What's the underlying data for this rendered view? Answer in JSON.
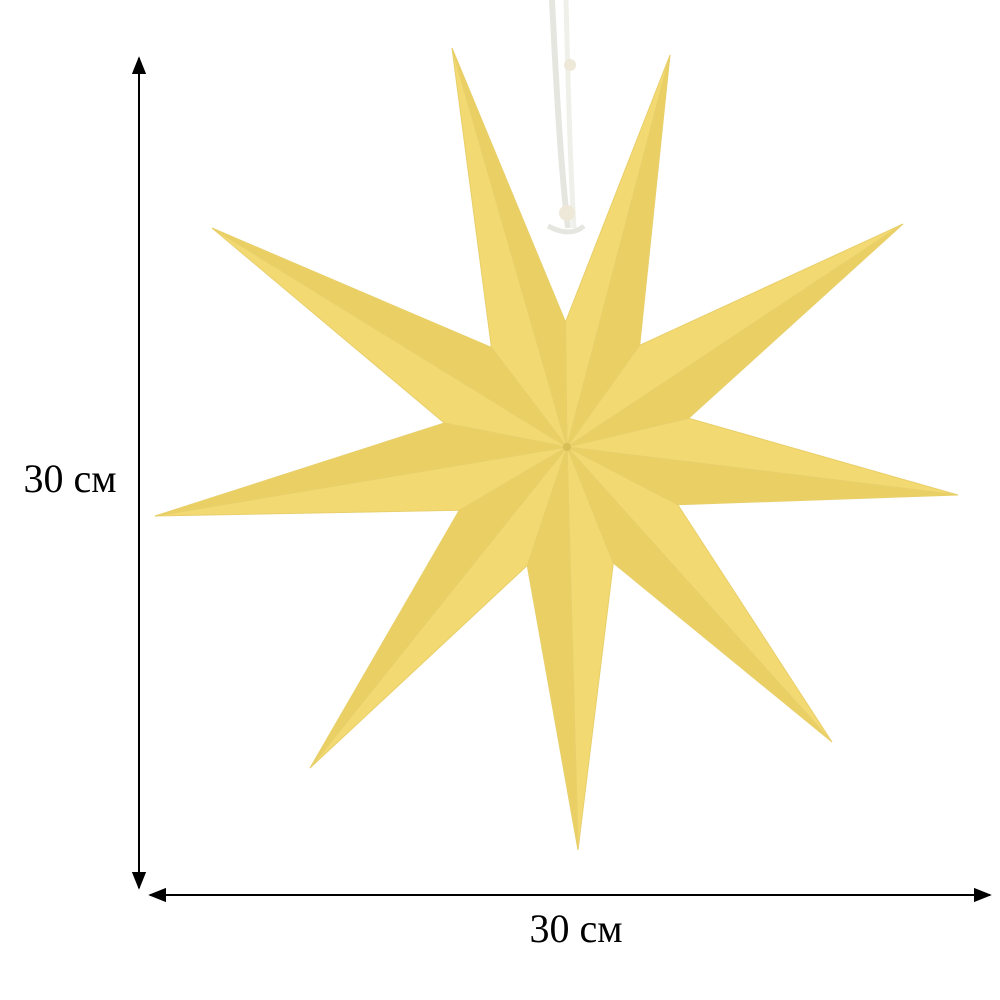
{
  "dimensions": {
    "height": {
      "label": "30 см"
    },
    "width": {
      "label": "30 см"
    }
  }
}
